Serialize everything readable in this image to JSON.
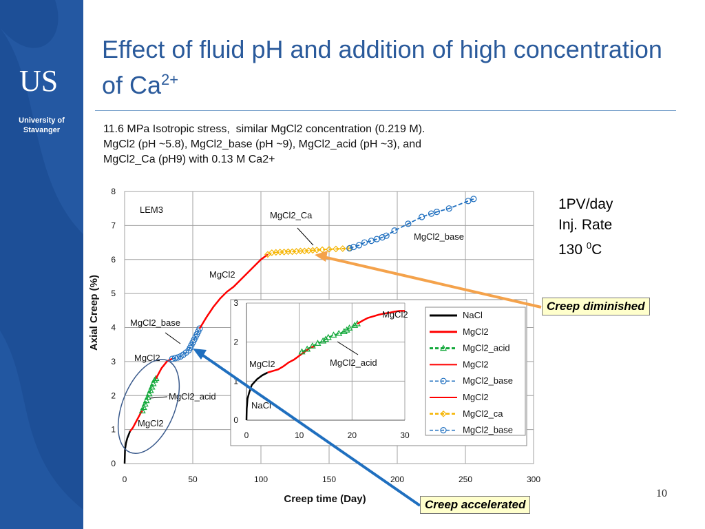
{
  "slide": {
    "title_main": "Effect of fluid pH and addition of high concentration of Ca",
    "title_sup": "2+",
    "subtitle_lines": [
      "11.6 MPa Isotropic stress,  similar MgCl2 concentration (0.219 M).",
      "MgCl2 (pH ~5.8), MgCl2_base (pH ~9), MgCl2_acid (pH ~3), and",
      "MgCl2_Ca (pH9) with 0.13 M Ca2+"
    ],
    "conditions": [
      "1PV/day",
      "Inj. Rate",
      "130 ",
      "0",
      "C"
    ],
    "page_number": "10",
    "logo": {
      "letters": "US",
      "line1": "University of",
      "line2": "Stavanger"
    },
    "brand_color": "#1d4f97",
    "callouts": {
      "diminished": "Creep diminished",
      "accelerated": "Creep accelerated",
      "diminished_arrow_color": "#f4a24b",
      "accelerated_arrow_color": "#1f6fbf"
    }
  },
  "chart_data": [
    {
      "type": "line",
      "xlabel": "Creep time (Day)",
      "ylabel": "Axial Creep (%)",
      "xlim": [
        0,
        300
      ],
      "ylim": [
        0,
        8
      ],
      "xticks": [
        "0",
        "50",
        "100",
        "150",
        "200",
        "250",
        "300"
      ],
      "yticks": [
        "0",
        "1",
        "2",
        "3",
        "4",
        "5",
        "6",
        "7",
        "8"
      ],
      "grid": true,
      "annotations": [
        "LEM3",
        "MgCl2_Ca",
        "MgCl2_base",
        "MgCl2",
        "MgCl2_base",
        "MgCl2",
        "MgCl2_acid",
        "MgCl2"
      ],
      "series": [
        {
          "name": "NaCl",
          "color": "#000000",
          "style": "line",
          "x": [
            0,
            0.3,
            1,
            2,
            3,
            4
          ],
          "y": [
            0,
            0.4,
            0.6,
            0.75,
            0.85,
            0.95
          ]
        },
        {
          "name": "MgCl2",
          "color": "#ff0000",
          "style": "line",
          "x": [
            4,
            6,
            8,
            10,
            12,
            13
          ],
          "y": [
            0.95,
            1.05,
            1.2,
            1.35,
            1.5,
            1.55
          ]
        },
        {
          "name": "MgCl2_acid",
          "color": "#12a83a",
          "style": "dash-triangle",
          "x": [
            13,
            14,
            15,
            16,
            17,
            18,
            19,
            20,
            21,
            22,
            23
          ],
          "y": [
            1.55,
            1.65,
            1.75,
            1.85,
            1.95,
            2.05,
            2.15,
            2.25,
            2.35,
            2.45,
            2.5
          ]
        },
        {
          "name": "MgCl2",
          "color": "#ff0000",
          "style": "line",
          "x": [
            23,
            25,
            27,
            29,
            31,
            33,
            35
          ],
          "y": [
            2.5,
            2.65,
            2.8,
            2.9,
            3.0,
            3.05,
            3.08
          ]
        },
        {
          "name": "MgCl2_base",
          "color": "#1f6fbf",
          "style": "dash-circle",
          "x": [
            35,
            37,
            39,
            41,
            43,
            45,
            47,
            48,
            49,
            50,
            51,
            52,
            53,
            54,
            55
          ],
          "y": [
            3.08,
            3.1,
            3.12,
            3.15,
            3.2,
            3.26,
            3.33,
            3.4,
            3.48,
            3.56,
            3.64,
            3.72,
            3.8,
            3.88,
            3.97
          ]
        },
        {
          "name": "MgCl2",
          "color": "#ff0000",
          "style": "line",
          "x": [
            55,
            60,
            65,
            70,
            75,
            80,
            85,
            90,
            95,
            100,
            105
          ],
          "y": [
            3.97,
            4.3,
            4.6,
            4.85,
            5.05,
            5.2,
            5.4,
            5.6,
            5.8,
            6.0,
            6.15
          ]
        },
        {
          "name": "MgCl2_ca",
          "color": "#f5b400",
          "style": "dash-diamond",
          "x": [
            105,
            108,
            111,
            114,
            117,
            120,
            123,
            126,
            129,
            132,
            135,
            138,
            141,
            145,
            150,
            155,
            160,
            165
          ],
          "y": [
            6.15,
            6.2,
            6.21,
            6.22,
            6.22,
            6.23,
            6.23,
            6.24,
            6.25,
            6.25,
            6.26,
            6.27,
            6.28,
            6.29,
            6.3,
            6.31,
            6.32,
            6.33
          ]
        },
        {
          "name": "MgCl2_base",
          "color": "#1f6fbf",
          "style": "dash-circle",
          "x": [
            165,
            168,
            172,
            176,
            181,
            185,
            189,
            192,
            198,
            208,
            218,
            225,
            229,
            238,
            252,
            256
          ],
          "y": [
            6.33,
            6.37,
            6.42,
            6.5,
            6.55,
            6.6,
            6.65,
            6.7,
            6.85,
            7.05,
            7.25,
            7.35,
            7.4,
            7.5,
            7.72,
            7.78
          ]
        }
      ]
    },
    {
      "type": "line",
      "xlim": [
        0,
        30
      ],
      "ylim": [
        0,
        3
      ],
      "xticks": [
        "0",
        "10",
        "20",
        "30"
      ],
      "yticks": [
        "0",
        "1",
        "2",
        "3"
      ],
      "grid": true,
      "annotations": [
        "MgCl2",
        "MgCl2",
        "MgCl2_acid",
        "NaCl"
      ],
      "legend_position": "right",
      "legend": [
        "NaCl",
        "MgCl2",
        "MgCl2_acid",
        "MgCl2",
        "MgCl2_base",
        "MgCl2",
        "MgCl2_ca",
        "MgCl2_base"
      ],
      "legend_styles": [
        {
          "color": "#000000",
          "style": "line",
          "width": 3
        },
        {
          "color": "#ff0000",
          "style": "line",
          "width": 3
        },
        {
          "color": "#12a83a",
          "style": "dash-triangle",
          "width": 3
        },
        {
          "color": "#ff0000",
          "style": "line",
          "width": 2
        },
        {
          "color": "#1f6fbf",
          "style": "dash-circle",
          "width": 1.5
        },
        {
          "color": "#ff0000",
          "style": "line",
          "width": 2
        },
        {
          "color": "#f5b400",
          "style": "dash-diamond",
          "width": 2.5
        },
        {
          "color": "#1f6fbf",
          "style": "dash-circle-dot",
          "width": 1.5
        }
      ],
      "series": [
        {
          "name": "NaCl",
          "color": "#000000",
          "style": "line",
          "x": [
            0,
            0.05,
            0.2,
            0.5,
            1,
            2,
            3,
            4
          ],
          "y": [
            0,
            0.3,
            0.55,
            0.7,
            0.9,
            1.05,
            1.15,
            1.22
          ]
        },
        {
          "name": "MgCl2",
          "color": "#ff0000",
          "style": "line",
          "x": [
            4,
            5,
            6,
            7,
            8,
            9,
            10,
            11,
            12,
            13
          ],
          "y": [
            1.22,
            1.26,
            1.3,
            1.38,
            1.48,
            1.55,
            1.65,
            1.75,
            1.85,
            1.9
          ]
        },
        {
          "name": "MgCl2_acid",
          "color": "#12a83a",
          "style": "dash-triangle",
          "x": [
            10.5,
            11.5,
            12.5,
            13.5,
            14.5,
            15,
            15.5,
            16.5,
            17.5,
            18.5,
            19,
            19.5,
            20.5,
            21
          ],
          "y": [
            1.75,
            1.82,
            1.9,
            1.97,
            2.03,
            2.07,
            2.12,
            2.18,
            2.22,
            2.27,
            2.31,
            2.36,
            2.43,
            2.47
          ]
        },
        {
          "name": "MgCl2",
          "color": "#ff0000",
          "style": "line",
          "x": [
            21,
            22,
            23,
            24,
            25,
            26,
            27,
            28,
            29,
            30
          ],
          "y": [
            2.47,
            2.55,
            2.62,
            2.66,
            2.7,
            2.73,
            2.75,
            2.78,
            2.8,
            2.8
          ]
        }
      ]
    }
  ]
}
